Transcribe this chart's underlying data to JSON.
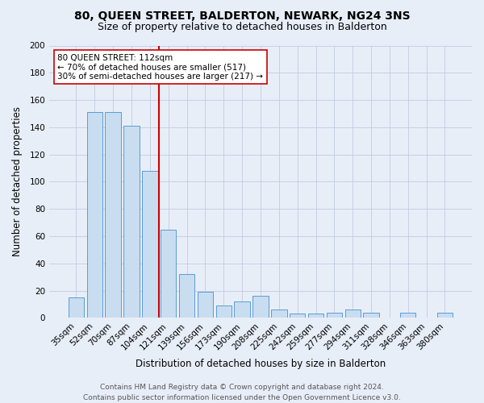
{
  "title": "80, QUEEN STREET, BALDERTON, NEWARK, NG24 3NS",
  "subtitle": "Size of property relative to detached houses in Balderton",
  "xlabel": "Distribution of detached houses by size in Balderton",
  "ylabel": "Number of detached properties",
  "categories": [
    "35sqm",
    "52sqm",
    "70sqm",
    "87sqm",
    "104sqm",
    "121sqm",
    "139sqm",
    "156sqm",
    "173sqm",
    "190sqm",
    "208sqm",
    "225sqm",
    "242sqm",
    "259sqm",
    "277sqm",
    "294sqm",
    "311sqm",
    "328sqm",
    "346sqm",
    "363sqm",
    "380sqm"
  ],
  "values": [
    15,
    151,
    151,
    141,
    108,
    65,
    32,
    19,
    9,
    12,
    16,
    6,
    3,
    3,
    4,
    6,
    4,
    0,
    4,
    0,
    4
  ],
  "bar_color": "#c9ddf0",
  "bar_edge_color": "#5b9bd5",
  "vline_x": 4.5,
  "vline_color": "#cc0000",
  "annotation_text": "80 QUEEN STREET: 112sqm\n← 70% of detached houses are smaller (517)\n30% of semi-detached houses are larger (217) →",
  "annotation_box_color": "#ffffff",
  "annotation_box_edge": "#cc0000",
  "ylim": [
    0,
    200
  ],
  "yticks": [
    0,
    20,
    40,
    60,
    80,
    100,
    120,
    140,
    160,
    180,
    200
  ],
  "background_color": "#e8eef8",
  "grid_color": "#c0cce0",
  "footer_line1": "Contains HM Land Registry data © Crown copyright and database right 2024.",
  "footer_line2": "Contains public sector information licensed under the Open Government Licence v3.0.",
  "title_fontsize": 10,
  "subtitle_fontsize": 9,
  "axis_label_fontsize": 8.5,
  "tick_fontsize": 7.5,
  "annotation_fontsize": 7.5,
  "footer_fontsize": 6.5
}
